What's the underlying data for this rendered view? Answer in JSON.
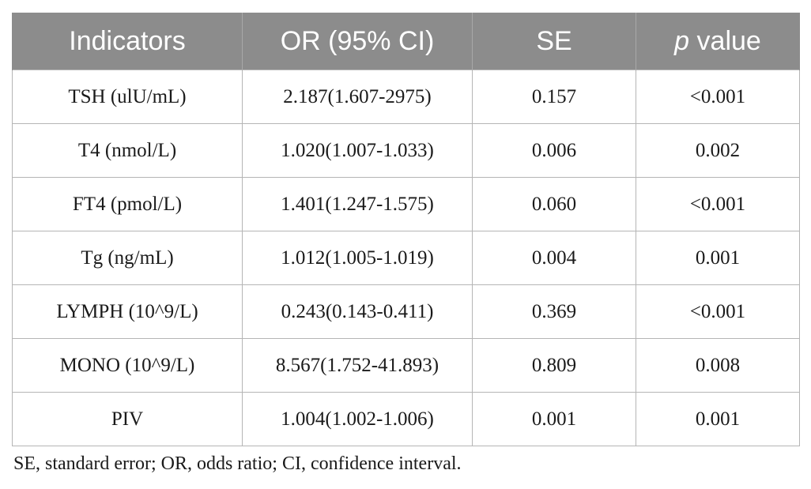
{
  "table": {
    "headers": {
      "indicators": "Indicators",
      "or": "OR (95% CI)",
      "se": "SE",
      "p_italic": "p",
      "p_rest": " value"
    },
    "rows": [
      {
        "indicator": "TSH (ulU/mL)",
        "or": "2.187(1.607-2975)",
        "se": "0.157",
        "p": "<0.001"
      },
      {
        "indicator": "T4 (nmol/L)",
        "or": "1.020(1.007-1.033)",
        "se": "0.006",
        "p": "0.002"
      },
      {
        "indicator": "FT4 (pmol/L)",
        "or": "1.401(1.247-1.575)",
        "se": "0.060",
        "p": "<0.001"
      },
      {
        "indicator": "Tg (ng/mL)",
        "or": "1.012(1.005-1.019)",
        "se": "0.004",
        "p": "0.001"
      },
      {
        "indicator": "LYMPH (10^9/L)",
        "or": "0.243(0.143-0.411)",
        "se": "0.369",
        "p": "<0.001"
      },
      {
        "indicator": "MONO (10^9/L)",
        "or": "8.567(1.752-41.893)",
        "se": "0.809",
        "p": "0.008"
      },
      {
        "indicator": "PIV",
        "or": "1.004(1.002-1.006)",
        "se": "0.001",
        "p": "0.001"
      }
    ]
  },
  "footnote": "SE, standard error; OR, odds ratio; CI, confidence interval."
}
